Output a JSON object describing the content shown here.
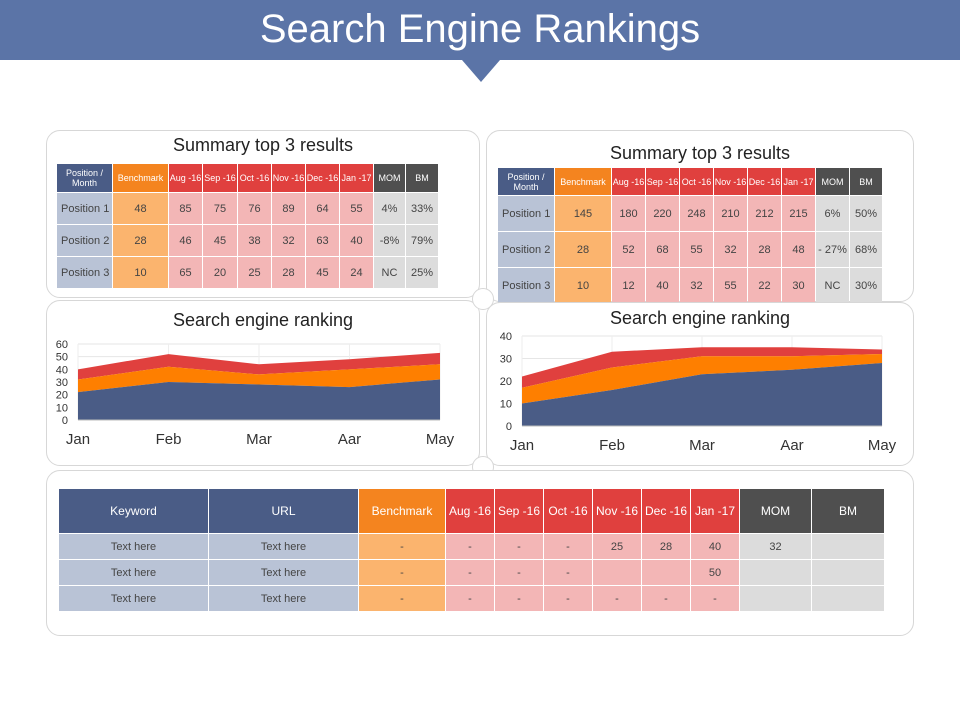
{
  "page": {
    "title": "Search Engine Rankings"
  },
  "panel_a": {
    "title": "Summary top 3 results",
    "headers": [
      "Position / Month",
      "Benchmark",
      "Aug -16",
      "Sep -16",
      "Oct -16",
      "Nov -16",
      "Dec -16",
      "Jan -17",
      "MOM",
      "BM"
    ],
    "rows": [
      [
        "Position 1",
        "48",
        "85",
        "75",
        "76",
        "89",
        "64",
        "55",
        "4%",
        "33%"
      ],
      [
        "Position 2",
        "28",
        "46",
        "45",
        "38",
        "32",
        "63",
        "40",
        "-8%",
        "79%"
      ],
      [
        "Position 3",
        "10",
        "65",
        "20",
        "25",
        "28",
        "45",
        "24",
        "NC",
        "25%"
      ]
    ]
  },
  "panel_b": {
    "title": "Summary top 3 results",
    "headers": [
      "Position / Month",
      "Benchmark",
      "Aug -16",
      "Sep -16",
      "Oct -16",
      "Nov -16",
      "Dec -16",
      "Jan -17",
      "MOM",
      "BM"
    ],
    "rows": [
      [
        "Position 1",
        "145",
        "180",
        "220",
        "248",
        "210",
        "212",
        "215",
        "6%",
        "50%"
      ],
      [
        "Position 2",
        "28",
        "52",
        "68",
        "55",
        "32",
        "28",
        "48",
        "- 27%",
        "68%"
      ],
      [
        "Position 3",
        "10",
        "12",
        "40",
        "32",
        "55",
        "22",
        "30",
        "NC",
        "30%"
      ]
    ]
  },
  "panel_c": {
    "title": "Search engine ranking"
  },
  "panel_d": {
    "title": "Search engine ranking"
  },
  "panel_e": {
    "headers": [
      "Keyword",
      "URL",
      "Benchmark",
      "Aug -16",
      "Sep -16",
      "Oct -16",
      "Nov -16",
      "Dec -16",
      "Jan -17",
      "MOM",
      "BM"
    ],
    "rows": [
      [
        "Text here",
        "Text here",
        "-",
        "-",
        "-",
        "-",
        "25",
        "28",
        "40",
        "32",
        ""
      ],
      [
        "Text here",
        "Text here",
        "-",
        "-",
        "-",
        "-",
        "",
        "",
        "50",
        "",
        ""
      ],
      [
        "Text here",
        "Text here",
        "-",
        "-",
        "-",
        "-",
        "-",
        "-",
        "-",
        "",
        ""
      ]
    ]
  },
  "colors": {
    "navy": "#4a5c86",
    "orange": "#fe7f00",
    "red": "#e0403e",
    "banner": "#5b74a7"
  },
  "chart_data": [
    {
      "type": "area",
      "stacked": true,
      "categories": [
        "Jan",
        "Feb",
        "Mar",
        "Aar",
        "May"
      ],
      "ylim": [
        0,
        60
      ],
      "yticks": [
        0,
        10,
        20,
        30,
        40,
        50,
        60
      ],
      "grid": true,
      "series": [
        {
          "values": [
            22,
            30,
            28,
            26,
            32
          ],
          "color": "#4a5c86"
        },
        {
          "values": [
            10,
            12,
            8,
            14,
            12
          ],
          "color": "#fe7f00"
        },
        {
          "values": [
            8,
            10,
            8,
            8,
            9
          ],
          "color": "#e0403e"
        }
      ]
    },
    {
      "type": "area",
      "stacked": true,
      "categories": [
        "Jan",
        "Feb",
        "Mar",
        "Aar",
        "May"
      ],
      "ylim": [
        0,
        40
      ],
      "yticks": [
        0,
        10,
        20,
        30,
        40
      ],
      "grid": true,
      "series": [
        {
          "values": [
            10,
            16,
            23,
            25,
            28
          ],
          "color": "#4a5c86"
        },
        {
          "values": [
            7,
            10,
            8,
            6,
            4
          ],
          "color": "#fe7f00"
        },
        {
          "values": [
            5,
            7,
            4,
            4,
            2
          ],
          "color": "#e0403e"
        }
      ]
    }
  ]
}
